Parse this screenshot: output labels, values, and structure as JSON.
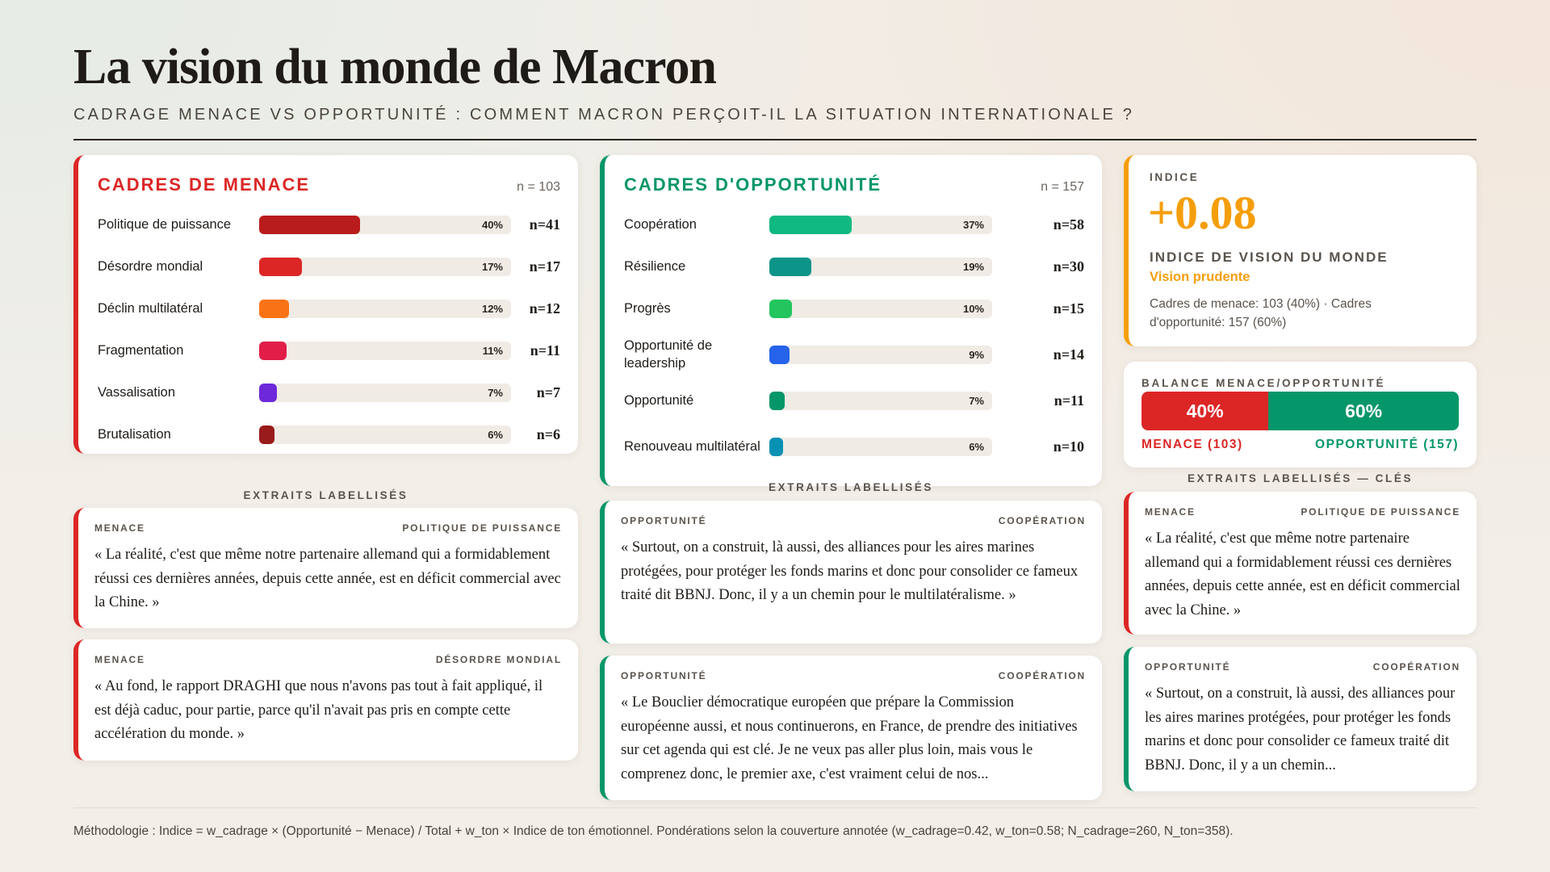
{
  "title": "La vision du monde de Macron",
  "subtitle": "Cadrage menace vs opportunité : comment Macron perçoit-il la situation internationale ?",
  "colors": {
    "menace": "#dc2626",
    "opportunite": "#059669",
    "indice": "#f59e0b"
  },
  "menace": {
    "title": "CADRES DE MENACE",
    "n": "n = 103",
    "items": [
      {
        "label": "Politique de puissance",
        "pct": 40,
        "pct_label": "40%",
        "n": "n=41",
        "color": "#b91c1c"
      },
      {
        "label": "Désordre mondial",
        "pct": 17,
        "pct_label": "17%",
        "n": "n=17",
        "color": "#dc2626"
      },
      {
        "label": "Déclin multilatéral",
        "pct": 12,
        "pct_label": "12%",
        "n": "n=12",
        "color": "#f97316"
      },
      {
        "label": "Fragmentation",
        "pct": 11,
        "pct_label": "11%",
        "n": "n=11",
        "color": "#e11d48"
      },
      {
        "label": "Vassalisation",
        "pct": 7,
        "pct_label": "7%",
        "n": "n=7",
        "color": "#6d28d9"
      },
      {
        "label": "Brutalisation",
        "pct": 6,
        "pct_label": "6%",
        "n": "n=6",
        "color": "#991b1b"
      }
    ]
  },
  "opportunite": {
    "title": "CADRES D'OPPORTUNITÉ",
    "n": "n = 157",
    "items": [
      {
        "label": "Coopération",
        "pct": 37,
        "pct_label": "37%",
        "n": "n=58",
        "color": "#10b981"
      },
      {
        "label": "Résilience",
        "pct": 19,
        "pct_label": "19%",
        "n": "n=30",
        "color": "#0d9488"
      },
      {
        "label": "Progrès",
        "pct": 10,
        "pct_label": "10%",
        "n": "n=15",
        "color": "#22c55e"
      },
      {
        "label": "Opportunité de leadership",
        "pct": 9,
        "pct_label": "9%",
        "n": "n=14",
        "color": "#2563eb"
      },
      {
        "label": "Opportunité",
        "pct": 7,
        "pct_label": "7%",
        "n": "n=11",
        "color": "#059669"
      },
      {
        "label": "Renouveau multilatéral",
        "pct": 6,
        "pct_label": "6%",
        "n": "n=10",
        "color": "#0891b2"
      }
    ]
  },
  "extraits_label": "EXTRAITS LABELLISÉS",
  "extraits_cles_label": "EXTRAITS LABELLISÉS — CLÉS",
  "quotes_menace": [
    {
      "type": "MENACE",
      "tag": "POLITIQUE DE PUISSANCE",
      "text": "« La réalité, c'est que même notre partenaire allemand qui a formidablement réussi ces dernières années, depuis cette année, est en déficit commercial avec la Chine. »"
    },
    {
      "type": "MENACE",
      "tag": "DÉSORDRE MONDIAL",
      "text": "« Au fond, le rapport DRAGHI que nous n'avons pas tout à fait appliqué, il est déjà caduc, pour partie, parce qu'il n'avait pas pris en compte cette accélération du monde. »"
    }
  ],
  "quotes_opportunite": [
    {
      "type": "OPPORTUNITÉ",
      "tag": "COOPÉRATION",
      "text": "« Surtout, on a construit, là aussi, des alliances pour les aires marines protégées, pour protéger les fonds marins et donc pour consolider ce fameux traité dit BBNJ. Donc, il y a un chemin pour le multilatéralisme. »"
    },
    {
      "type": "OPPORTUNITÉ",
      "tag": "COOPÉRATION",
      "text": "« Le Bouclier démocratique européen que prépare la Commission européenne aussi, et nous continuerons, en France, de prendre des initiatives sur cet agenda qui est clé. Je ne veux pas aller plus loin, mais vous le comprenez donc, le premier axe, c'est vraiment celui de nos..."
    }
  ],
  "quotes_cles": [
    {
      "type": "MENACE",
      "tag": "POLITIQUE DE PUISSANCE",
      "text": "« La réalité, c'est que même notre partenaire allemand qui a formidablement réussi ces dernières années, depuis cette année, est en déficit commercial avec la Chine. »"
    },
    {
      "type": "OPPORTUNITÉ",
      "tag": "COOPÉRATION",
      "text": "« Surtout, on a construit, là aussi, des alliances pour les aires marines protégées, pour protéger les fonds marins et donc pour consolider ce fameux traité dit BBNJ. Donc, il y a un chemin..."
    }
  ],
  "indice": {
    "label": "INDICE",
    "value": "+0.08",
    "title": "INDICE DE VISION DU MONDE",
    "verdict": "Vision prudente",
    "detail": "Cadres de menace: 103 (40%) · Cadres d'opportunité: 157 (60%)"
  },
  "balance": {
    "title": "BALANCE MENACE/OPPORTUNITÉ",
    "menace_pct": 40,
    "menace_label": "40%",
    "opp_label": "60%",
    "menace_caption": "MENACE (103)",
    "opp_caption": "OPPORTUNITÉ (157)"
  },
  "footer": "Méthodologie : Indice = w_cadrage × (Opportunité − Menace) / Total + w_ton × Indice de ton émotionnel. Pondérations selon la couverture annotée (w_cadrage=0.42, w_ton=0.58; N_cadrage=260, N_ton=358)."
}
